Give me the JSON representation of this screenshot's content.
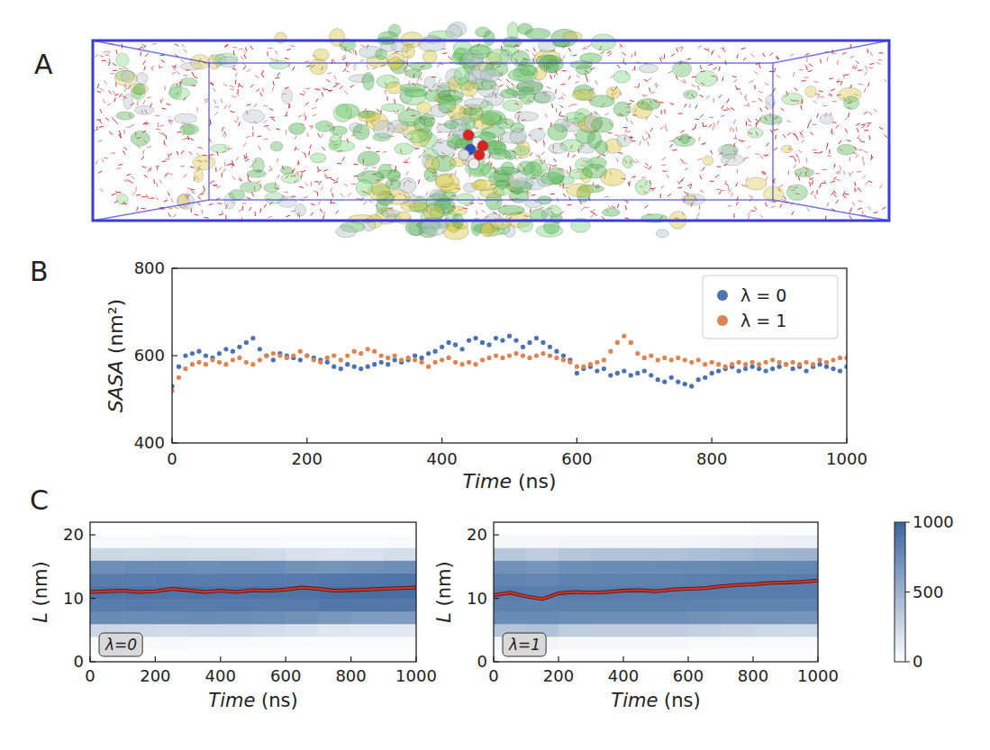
{
  "chart_data": [
    {
      "type": "illustration",
      "panel": "A"
    },
    {
      "type": "scatter",
      "panel": "B",
      "x_label": "Time (ns)",
      "y_label": "SASA (nm²)",
      "xlim": [
        0,
        1000
      ],
      "ylim": [
        400,
        800
      ],
      "xticks": [
        0,
        200,
        400,
        600,
        800,
        1000
      ],
      "yticks": [
        400,
        600,
        800
      ],
      "grid": false,
      "legend": "upper right",
      "marker": "circle",
      "x": [
        0,
        10,
        20,
        30,
        40,
        50,
        60,
        70,
        80,
        90,
        100,
        110,
        120,
        130,
        140,
        150,
        160,
        170,
        180,
        190,
        200,
        210,
        220,
        230,
        240,
        250,
        260,
        270,
        280,
        290,
        300,
        310,
        320,
        330,
        340,
        350,
        360,
        370,
        380,
        390,
        400,
        410,
        420,
        430,
        440,
        450,
        460,
        470,
        480,
        490,
        500,
        510,
        520,
        530,
        540,
        550,
        560,
        570,
        580,
        590,
        600,
        610,
        620,
        630,
        640,
        650,
        660,
        670,
        680,
        690,
        700,
        710,
        720,
        730,
        740,
        750,
        760,
        770,
        780,
        790,
        800,
        810,
        820,
        830,
        840,
        850,
        860,
        870,
        880,
        890,
        900,
        910,
        920,
        930,
        940,
        950,
        960,
        970,
        980,
        990,
        1000
      ],
      "series": [
        {
          "name": "λ = 0",
          "color": "#4c72b0",
          "values": [
            530,
            575,
            600,
            605,
            610,
            600,
            595,
            605,
            615,
            610,
            620,
            630,
            640,
            615,
            600,
            590,
            605,
            600,
            595,
            590,
            600,
            595,
            590,
            585,
            575,
            570,
            580,
            575,
            570,
            575,
            580,
            585,
            580,
            590,
            585,
            590,
            600,
            595,
            605,
            610,
            620,
            630,
            625,
            615,
            635,
            640,
            630,
            625,
            640,
            635,
            645,
            635,
            620,
            630,
            640,
            630,
            620,
            610,
            600,
            590,
            560,
            570,
            575,
            565,
            570,
            555,
            560,
            565,
            555,
            560,
            565,
            555,
            545,
            540,
            550,
            540,
            535,
            530,
            545,
            550,
            560,
            565,
            570,
            575,
            565,
            570,
            575,
            570,
            565,
            570,
            575,
            580,
            570,
            575,
            565,
            575,
            580,
            575,
            570,
            565,
            575
          ]
        },
        {
          "name": "λ = 1",
          "color": "#dd8452",
          "values": [
            520,
            550,
            570,
            580,
            585,
            580,
            590,
            585,
            580,
            590,
            595,
            585,
            580,
            590,
            600,
            605,
            600,
            595,
            600,
            610,
            600,
            590,
            585,
            595,
            600,
            590,
            600,
            610,
            605,
            615,
            610,
            600,
            595,
            600,
            590,
            595,
            590,
            585,
            575,
            585,
            590,
            595,
            585,
            580,
            585,
            580,
            590,
            595,
            600,
            595,
            600,
            605,
            600,
            595,
            600,
            605,
            600,
            595,
            590,
            585,
            575,
            575,
            580,
            585,
            590,
            610,
            630,
            645,
            630,
            605,
            595,
            600,
            590,
            595,
            590,
            595,
            590,
            585,
            590,
            580,
            585,
            580,
            575,
            580,
            585,
            580,
            585,
            580,
            585,
            590,
            585,
            580,
            585,
            580,
            585,
            580,
            590,
            585,
            590,
            595,
            595
          ]
        }
      ]
    },
    {
      "type": "heatmap",
      "panel": "C",
      "annotation": "λ=0",
      "x_label": "Time (ns)",
      "y_label": "L (nm)",
      "xlim": [
        0,
        1000
      ],
      "ylim": [
        0,
        22
      ],
      "xticks": [
        0,
        200,
        400,
        600,
        800,
        1000
      ],
      "yticks": [
        0,
        10,
        20
      ],
      "x_bins": [
        0,
        100,
        200,
        300,
        400,
        500,
        600,
        700,
        800,
        900,
        1000
      ],
      "y_bins": [
        0,
        2,
        4,
        6,
        8,
        10,
        12,
        14,
        16,
        18,
        20,
        22
      ],
      "cells": [
        [
          10,
          10,
          10,
          10,
          10,
          10,
          10,
          10,
          10,
          10
        ],
        [
          40,
          40,
          45,
          40,
          40,
          40,
          35,
          30,
          30,
          30
        ],
        [
          260,
          250,
          240,
          250,
          250,
          230,
          200,
          160,
          150,
          150
        ],
        [
          760,
          750,
          750,
          760,
          750,
          740,
          720,
          680,
          660,
          650
        ],
        [
          850,
          860,
          850,
          850,
          860,
          850,
          860,
          880,
          880,
          880
        ],
        [
          900,
          900,
          900,
          910,
          900,
          900,
          910,
          930,
          940,
          940
        ],
        [
          850,
          850,
          860,
          850,
          850,
          860,
          860,
          880,
          890,
          900
        ],
        [
          740,
          750,
          750,
          740,
          750,
          750,
          720,
          700,
          720,
          740
        ],
        [
          260,
          250,
          260,
          250,
          250,
          240,
          200,
          180,
          190,
          220
        ],
        [
          40,
          40,
          45,
          40,
          40,
          40,
          35,
          30,
          35,
          40
        ],
        [
          10,
          10,
          10,
          10,
          10,
          10,
          10,
          10,
          10,
          10
        ]
      ],
      "color_range": [
        0,
        1000
      ],
      "line": {
        "color": "#c0392b",
        "x": [
          0,
          50,
          100,
          150,
          200,
          250,
          300,
          350,
          400,
          450,
          500,
          550,
          600,
          650,
          700,
          750,
          800,
          850,
          900,
          950,
          1000
        ],
        "values": [
          11,
          11.1,
          11.2,
          11,
          11.1,
          11.5,
          11.3,
          11,
          11.2,
          11,
          11.3,
          11.2,
          11.4,
          11.7,
          11.5,
          11.2,
          11.3,
          11.4,
          11.5,
          11.6,
          11.7
        ]
      }
    },
    {
      "type": "heatmap",
      "annotation": "λ=1",
      "x_label": "Time (ns)",
      "y_label": "L (nm)",
      "xlim": [
        0,
        1000
      ],
      "ylim": [
        0,
        22
      ],
      "xticks": [
        0,
        200,
        400,
        600,
        800,
        1000
      ],
      "yticks": [
        0,
        10,
        20
      ],
      "x_bins": [
        0,
        100,
        200,
        300,
        400,
        500,
        600,
        700,
        800,
        900,
        1000
      ],
      "y_bins": [
        0,
        2,
        4,
        6,
        8,
        10,
        12,
        14,
        16,
        18,
        20,
        22
      ],
      "cells": [
        [
          10,
          10,
          10,
          10,
          10,
          10,
          10,
          10,
          10,
          10
        ],
        [
          60,
          60,
          50,
          50,
          50,
          50,
          40,
          40,
          40,
          40
        ],
        [
          380,
          400,
          330,
          320,
          320,
          320,
          300,
          280,
          260,
          250
        ],
        [
          760,
          760,
          740,
          740,
          740,
          740,
          720,
          700,
          700,
          690
        ],
        [
          820,
          820,
          820,
          820,
          820,
          820,
          810,
          800,
          800,
          800
        ],
        [
          850,
          840,
          850,
          850,
          850,
          850,
          850,
          850,
          850,
          850
        ],
        [
          800,
          790,
          810,
          820,
          820,
          820,
          830,
          840,
          840,
          850
        ],
        [
          720,
          700,
          740,
          750,
          750,
          760,
          760,
          770,
          780,
          790
        ],
        [
          360,
          330,
          380,
          390,
          390,
          400,
          420,
          450,
          480,
          500
        ],
        [
          50,
          50,
          60,
          60,
          60,
          60,
          70,
          80,
          90,
          100
        ],
        [
          10,
          10,
          10,
          10,
          10,
          10,
          10,
          15,
          20,
          20
        ]
      ],
      "color_range": [
        0,
        1000
      ],
      "color_ticks": [
        0,
        500,
        1000
      ],
      "line": {
        "color": "#c0392b",
        "x": [
          0,
          50,
          100,
          150,
          200,
          250,
          300,
          350,
          400,
          450,
          500,
          550,
          600,
          650,
          700,
          750,
          800,
          850,
          900,
          950,
          1000
        ],
        "values": [
          10.5,
          10.9,
          10.3,
          9.9,
          10.8,
          11,
          10.9,
          11,
          11.2,
          11.3,
          11.1,
          11.4,
          11.5,
          11.6,
          11.9,
          12.1,
          12.2,
          12.4,
          12.5,
          12.6,
          12.8
        ]
      }
    }
  ]
}
